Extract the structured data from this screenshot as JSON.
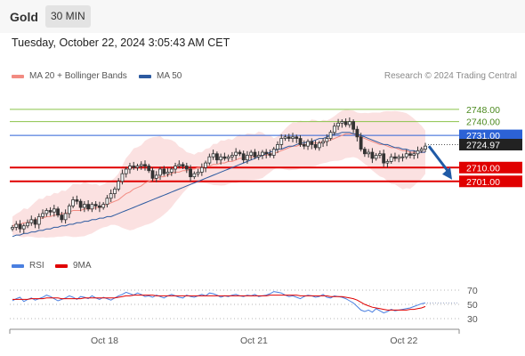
{
  "header": {
    "instrument": "Gold",
    "timeframe": "30 MIN"
  },
  "timestamp": "Tuesday, October 22, 2024 3:05:43 AM CET",
  "legend": {
    "ma20_label": "MA 20 + Bollinger Bands",
    "ma50_label": "MA 50",
    "credit": "Research © 2024 Trading Central"
  },
  "rsi_legend": {
    "rsi_label": "RSI",
    "ma_label": "9MA"
  },
  "colors": {
    "ma20": "#f28b82",
    "ma50": "#2c5aa0",
    "band": "#f8c9c9",
    "pivot": "#2c62d6",
    "resistance": "#8bc34a",
    "support": "#e00000",
    "arrow": "#1f5aa6",
    "rsi": "#4a7fe0",
    "rsi_ma": "#e00000",
    "bull": "#ffffff",
    "bear": "#333333"
  },
  "chart_data": [
    {
      "type": "candlestick",
      "title": "",
      "x_ticks": [
        "Oct 18",
        "Oct 21",
        "Oct 22"
      ],
      "ylim": [
        2655,
        2763
      ],
      "levels": {
        "resistance": [
          {
            "label": "2748.00",
            "value": 2748.0
          },
          {
            "label": "2740.00",
            "value": 2740.0
          }
        ],
        "pivot": {
          "label": "2731.00",
          "value": 2731.0
        },
        "last_price": {
          "label": "2724.97",
          "value": 2724.97
        },
        "support": [
          {
            "label": "2710.00",
            "value": 2710.0
          },
          {
            "label": "2701.00",
            "value": 2701.0
          }
        ]
      },
      "close": [
        2671,
        2673,
        2670,
        2672,
        2674,
        2676,
        2673,
        2678,
        2680,
        2682,
        2681,
        2683,
        2679,
        2676,
        2680,
        2685,
        2689,
        2688,
        2684,
        2686,
        2683,
        2686,
        2685,
        2684,
        2686,
        2690,
        2693,
        2696,
        2701,
        2706,
        2709,
        2711,
        2710,
        2711,
        2712,
        2711,
        2708,
        2703,
        2705,
        2709,
        2706,
        2707,
        2709,
        2711,
        2712,
        2711,
        2709,
        2704,
        2706,
        2707,
        2710,
        2713,
        2717,
        2719,
        2715,
        2717,
        2716,
        2717,
        2718,
        2720,
        2719,
        2715,
        2718,
        2720,
        2717,
        2718,
        2720,
        2719,
        2718,
        2722,
        2725,
        2729,
        2730,
        2729,
        2730,
        2729,
        2725,
        2724,
        2727,
        2725,
        2723,
        2726,
        2727,
        2729,
        2733,
        2737,
        2739,
        2740,
        2738,
        2740,
        2735,
        2730,
        2722,
        2719,
        2720,
        2716,
        2718,
        2719,
        2713,
        2714,
        2717,
        2716,
        2717,
        2717,
        2719,
        2718,
        2719,
        2721,
        2722,
        2724
      ],
      "ma20": [
        2672,
        2673,
        2673,
        2674,
        2674,
        2675,
        2676,
        2677,
        2677,
        2678,
        2678,
        2679,
        2679,
        2680,
        2680,
        2681,
        2682,
        2682,
        2682,
        2683,
        2683,
        2683,
        2684,
        2684,
        2685,
        2686,
        2687,
        2688,
        2689,
        2691,
        2693,
        2694,
        2696,
        2697,
        2698,
        2700,
        2701,
        2702,
        2703,
        2704,
        2704,
        2705,
        2706,
        2707,
        2707,
        2708,
        2708,
        2709,
        2709,
        2710,
        2710,
        2711,
        2711,
        2712,
        2712,
        2713,
        2713,
        2714,
        2714,
        2715,
        2716,
        2716,
        2717,
        2717,
        2717,
        2718,
        2718,
        2718,
        2719,
        2719,
        2720,
        2721,
        2722,
        2723,
        2724,
        2724,
        2725,
        2725,
        2725,
        2726,
        2726,
        2726,
        2727,
        2727,
        2728,
        2729,
        2730,
        2731,
        2732,
        2732,
        2732,
        2731,
        2730,
        2729,
        2728,
        2727,
        2726,
        2725,
        2725,
        2724,
        2723,
        2723,
        2722,
        2721,
        2721,
        2720,
        2720,
        2720,
        2720,
        2720
      ],
      "ma50": [
        2665,
        2666,
        2666,
        2667,
        2667,
        2668,
        2668,
        2669,
        2669,
        2670,
        2670,
        2671,
        2671,
        2672,
        2672,
        2673,
        2673,
        2674,
        2674,
        2675,
        2675,
        2676,
        2676,
        2677,
        2677,
        2678,
        2678,
        2679,
        2680,
        2681,
        2682,
        2683,
        2684,
        2685,
        2686,
        2687,
        2688,
        2689,
        2690,
        2691,
        2692,
        2693,
        2694,
        2695,
        2696,
        2697,
        2698,
        2699,
        2700,
        2701,
        2702,
        2703,
        2704,
        2705,
        2706,
        2707,
        2708,
        2709,
        2710,
        2711,
        2712,
        2713,
        2714,
        2715,
        2716,
        2717,
        2718,
        2719,
        2720,
        2721,
        2722,
        2722,
        2723,
        2724,
        2724,
        2725,
        2726,
        2726,
        2727,
        2727,
        2728,
        2729,
        2729,
        2730,
        2731,
        2732,
        2732,
        2733,
        2733,
        2733,
        2732,
        2732,
        2731,
        2730,
        2729,
        2728,
        2727,
        2726,
        2725,
        2725,
        2724,
        2723,
        2723,
        2722,
        2722,
        2721,
        2721,
        2720,
        2720,
        2720
      ]
    },
    {
      "type": "line",
      "title": "RSI",
      "y_ticks": [
        "70",
        "50",
        "30"
      ],
      "ylim": [
        20,
        80
      ],
      "series": [
        {
          "name": "RSI",
          "values": [
            55,
            58,
            60,
            54,
            57,
            59,
            56,
            58,
            60,
            63,
            61,
            58,
            55,
            57,
            59,
            62,
            60,
            57,
            61,
            60,
            58,
            62,
            59,
            57,
            60,
            58,
            56,
            59,
            62,
            64,
            67,
            65,
            63,
            66,
            64,
            61,
            62,
            60,
            63,
            61,
            59,
            62,
            64,
            62,
            60,
            59,
            63,
            61,
            60,
            62,
            64,
            62,
            66,
            65,
            63,
            60,
            62,
            61,
            63,
            64,
            62,
            61,
            63,
            62,
            64,
            61,
            62,
            63,
            65,
            68,
            67,
            66,
            63,
            61,
            62,
            60,
            58,
            61,
            63,
            62,
            60,
            61,
            64,
            60,
            59,
            62,
            61,
            60,
            58,
            55,
            52,
            47,
            42,
            40,
            42,
            39,
            44,
            41,
            38,
            40,
            43,
            41,
            42,
            43,
            44,
            45,
            47,
            49,
            51,
            52
          ]
        },
        {
          "name": "9MA",
          "values": [
            57,
            57,
            57,
            57,
            57,
            58,
            58,
            58,
            58,
            59,
            59,
            59,
            59,
            58,
            58,
            58,
            58,
            58,
            58,
            59,
            59,
            59,
            59,
            59,
            59,
            59,
            59,
            59,
            60,
            61,
            62,
            62,
            63,
            63,
            63,
            63,
            63,
            63,
            62,
            62,
            62,
            62,
            62,
            62,
            62,
            62,
            62,
            62,
            62,
            62,
            62,
            62,
            62,
            62,
            62,
            62,
            62,
            62,
            62,
            62,
            62,
            62,
            62,
            62,
            62,
            62,
            62,
            62,
            63,
            63,
            63,
            63,
            63,
            63,
            63,
            63,
            62,
            62,
            62,
            62,
            62,
            62,
            62,
            62,
            61,
            61,
            61,
            61,
            60,
            59,
            58,
            56,
            53,
            50,
            48,
            46,
            45,
            44,
            43,
            42,
            42,
            42,
            42,
            42,
            42,
            43,
            43,
            44,
            45,
            47
          ]
        }
      ]
    }
  ]
}
